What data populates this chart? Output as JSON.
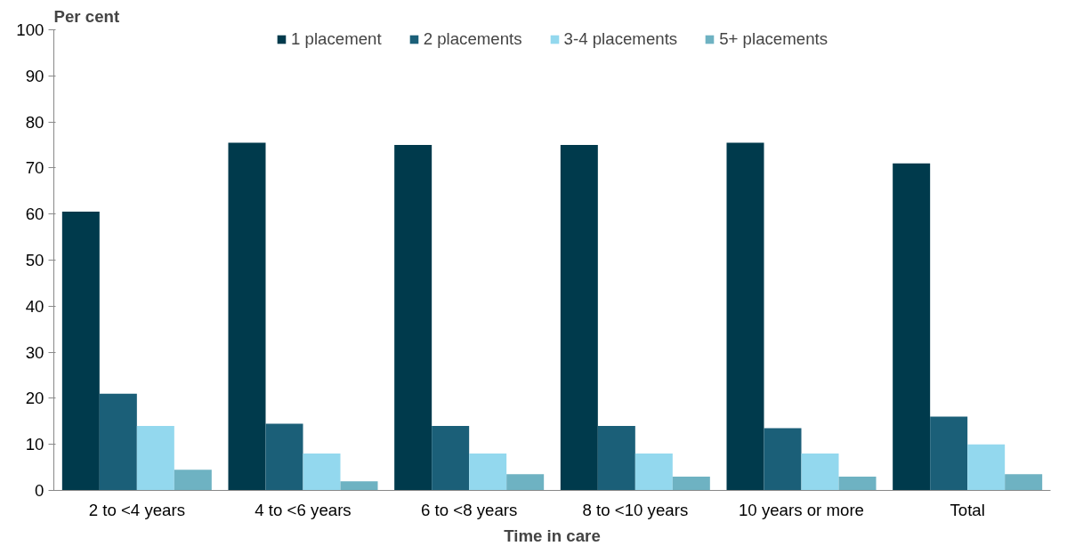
{
  "chart_data": {
    "type": "bar",
    "xlabel": "Time in care",
    "ylabel": "Per cent",
    "categories": [
      "2 to <4 years",
      "4 to <6 years",
      "6 to <8 years",
      "8 to <10 years",
      "10 years or more",
      "Total"
    ],
    "series": [
      {
        "name": "1 placement",
        "color": "#003a4c",
        "values": [
          60.5,
          75.5,
          75,
          75,
          75.5,
          71
        ]
      },
      {
        "name": "2 placements",
        "color": "#1b5f78",
        "values": [
          21,
          14.5,
          14,
          14,
          13.5,
          16
        ]
      },
      {
        "name": "3-4 placements",
        "color": "#93d8ee",
        "values": [
          14,
          8,
          8,
          8,
          8,
          10
        ]
      },
      {
        "name": "5+ placements",
        "color": "#6eb2c2",
        "values": [
          4.5,
          2,
          3.5,
          3,
          3,
          3.5
        ]
      }
    ],
    "ylim": [
      0,
      100
    ],
    "yticks": [
      0,
      10,
      20,
      30,
      40,
      50,
      60,
      70,
      80,
      90,
      100
    ],
    "grid": false,
    "legend": "top"
  }
}
